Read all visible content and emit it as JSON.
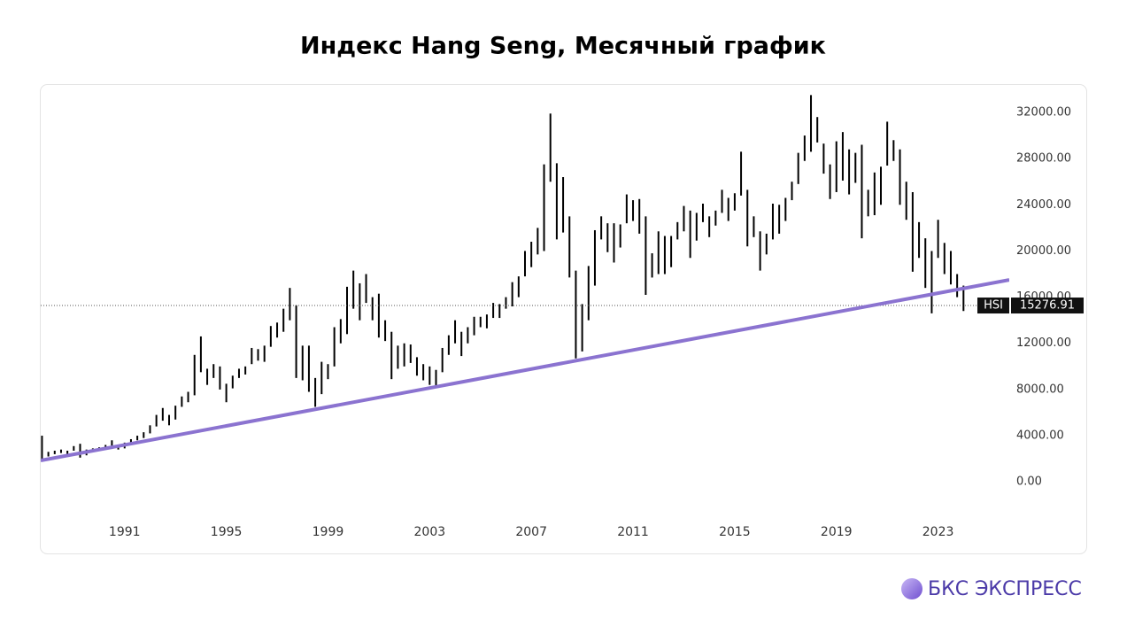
{
  "chart_data": {
    "type": "range",
    "title": "Индекс Hang Seng, Месячный график",
    "x": [
      1987.75,
      1988,
      1988.25,
      1988.5,
      1988.75,
      1989,
      1989.25,
      1989.5,
      1989.75,
      1990,
      1990.25,
      1990.5,
      1990.75,
      1991,
      1991.25,
      1991.5,
      1991.75,
      1992,
      1992.25,
      1992.5,
      1992.75,
      1993,
      1993.25,
      1993.5,
      1993.75,
      1994,
      1994.25,
      1994.5,
      1994.75,
      1995,
      1995.25,
      1995.5,
      1995.75,
      1996,
      1996.25,
      1996.5,
      1996.75,
      1997,
      1997.25,
      1997.5,
      1997.75,
      1998,
      1998.25,
      1998.5,
      1998.75,
      1999,
      1999.25,
      1999.5,
      1999.75,
      2000,
      2000.25,
      2000.5,
      2000.75,
      2001,
      2001.25,
      2001.5,
      2001.75,
      2002,
      2002.25,
      2002.5,
      2002.75,
      2003,
      2003.25,
      2003.5,
      2003.75,
      2004,
      2004.25,
      2004.5,
      2004.75,
      2005,
      2005.25,
      2005.5,
      2005.75,
      2006,
      2006.25,
      2006.5,
      2006.75,
      2007,
      2007.25,
      2007.5,
      2007.75,
      2008,
      2008.25,
      2008.5,
      2008.75,
      2009,
      2009.25,
      2009.5,
      2009.75,
      2010,
      2010.25,
      2010.5,
      2010.75,
      2011,
      2011.25,
      2011.5,
      2011.75,
      2012,
      2012.25,
      2012.5,
      2012.75,
      2013,
      2013.25,
      2013.5,
      2013.75,
      2014,
      2014.25,
      2014.5,
      2014.75,
      2015,
      2015.25,
      2015.5,
      2015.75,
      2016,
      2016.25,
      2016.5,
      2016.75,
      2017,
      2017.25,
      2017.5,
      2017.75,
      2018,
      2018.25,
      2018.5,
      2018.75,
      2019,
      2019.25,
      2019.5,
      2019.75,
      2020,
      2020.25,
      2020.5,
      2020.75,
      2021,
      2021.25,
      2021.5,
      2021.75,
      2022,
      2022.25,
      2022.5,
      2022.75,
      2023,
      2023.25,
      2023.5,
      2023.75,
      2024
    ],
    "series": [
      {
        "name": "high",
        "color": "#000000",
        "values": [
          4000,
          2600,
          2700,
          2800,
          2700,
          3100,
          3300,
          2800,
          2900,
          3000,
          3200,
          3600,
          3100,
          3400,
          3700,
          4000,
          4300,
          4900,
          5800,
          6400,
          5800,
          6600,
          7400,
          7800,
          11000,
          12600,
          9800,
          10200,
          10000,
          8500,
          9200,
          9800,
          10000,
          11600,
          11500,
          11800,
          13500,
          13800,
          15000,
          16800,
          15300,
          11800,
          11800,
          9000,
          10400,
          10200,
          13400,
          14100,
          16900,
          18300,
          17200,
          18000,
          16000,
          16300,
          14000,
          13000,
          11800,
          12000,
          11900,
          10800,
          10200,
          10000,
          9700,
          11600,
          12700,
          14000,
          13000,
          13400,
          14300,
          14300,
          14500,
          15500,
          15400,
          16000,
          17300,
          17800,
          20000,
          20800,
          22000,
          27500,
          31900,
          27600,
          26400,
          23000,
          18300,
          15400,
          18700,
          21800,
          23000,
          22400,
          22400,
          22300,
          24900,
          24400,
          24500,
          23000,
          19800,
          21700,
          21300,
          21300,
          22500,
          23900,
          23500,
          23300,
          24100,
          23000,
          23500,
          25300,
          24600,
          25000,
          28600,
          25300,
          23000,
          21700,
          21500,
          24100,
          24000,
          24600,
          26000,
          28500,
          30000,
          33500,
          31600,
          29300,
          27500,
          29500,
          30300,
          28800,
          28500,
          29200,
          25300,
          26800,
          27300,
          31200,
          29600,
          28800,
          26000,
          25100,
          22500,
          21100,
          20000,
          22700,
          20700,
          20000,
          18000,
          17000
        ]
      },
      {
        "name": "low",
        "color": "#000000",
        "values": [
          1900,
          2200,
          2400,
          2500,
          2400,
          2700,
          2100,
          2300,
          2600,
          2700,
          2800,
          3000,
          2800,
          2900,
          3300,
          3600,
          3800,
          4200,
          4800,
          5300,
          4900,
          5400,
          6500,
          6900,
          7500,
          9500,
          8400,
          9000,
          8000,
          6900,
          8100,
          9000,
          9300,
          10200,
          10500,
          10400,
          11700,
          12500,
          13000,
          14000,
          9000,
          8800,
          7800,
          6500,
          7600,
          8900,
          10000,
          12000,
          12800,
          15000,
          14000,
          15500,
          14000,
          12500,
          12200,
          8900,
          9800,
          10000,
          10300,
          9200,
          8800,
          8400,
          8300,
          9500,
          11000,
          12000,
          10900,
          12000,
          12700,
          13400,
          13300,
          14200,
          14200,
          15000,
          15200,
          16000,
          17800,
          18600,
          19700,
          20000,
          26000,
          21000,
          21600,
          17700,
          10700,
          11300,
          14000,
          17000,
          21000,
          19900,
          19000,
          20300,
          22400,
          22600,
          21500,
          16200,
          17700,
          18000,
          18000,
          18600,
          21000,
          21700,
          19400,
          20900,
          22500,
          21200,
          22200,
          23300,
          22600,
          23500,
          24800,
          20400,
          21200,
          18300,
          19700,
          21000,
          21500,
          22600,
          24400,
          25800,
          27800,
          28600,
          29400,
          26700,
          24500,
          25100,
          26100,
          24900,
          25900,
          21100,
          23000,
          23100,
          24000,
          27400,
          27800,
          24000,
          22700,
          18200,
          19400,
          16800,
          14600,
          19400,
          18000,
          17100,
          16000,
          14800
        ]
      }
    ],
    "last_label": "HSI",
    "last_value": 15276.91,
    "trendline": {
      "x": [
        1987.7,
        2025.8
      ],
      "y": [
        1850,
        17500
      ],
      "color": "#8b73d0"
    },
    "xlim": [
      1987.7,
      2025.8
    ],
    "ylim": [
      -5200,
      34300
    ],
    "xticks": [
      1991,
      1995,
      1999,
      2003,
      2007,
      2011,
      2015,
      2019,
      2023
    ],
    "yticks": [
      {
        "value": 0,
        "label": "0.00"
      },
      {
        "value": 4000,
        "label": "4000.00"
      },
      {
        "value": 8000,
        "label": "8000.00"
      },
      {
        "value": 12000,
        "label": "12000.00"
      },
      {
        "value": 16000,
        "label": "16000.00"
      },
      {
        "value": 20000,
        "label": "20000.00"
      },
      {
        "value": 24000,
        "label": "24000.00"
      },
      {
        "value": 28000,
        "label": "28000.00"
      },
      {
        "value": 32000,
        "label": "32000.00"
      }
    ],
    "logo": "БКС ЭКСПРЕСС"
  }
}
